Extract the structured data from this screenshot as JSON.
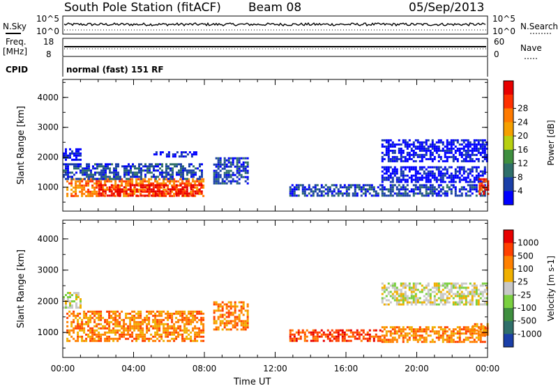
{
  "header": {
    "station": "South Pole Station (fitACF)",
    "beam": "Beam 08",
    "date": "05/Sep/2013"
  },
  "summary_panels": {
    "nsky_label": "N.Sky",
    "nsky_ticks": [
      "10^5",
      "10^0"
    ],
    "nsearch_label": "N.Search",
    "nsearch_ticks": [
      "10^5",
      "10^0"
    ],
    "freq_label_1": "Freq.",
    "freq_label_2": "[MHz]",
    "freq_ticks": [
      "18",
      "8"
    ],
    "nave_label": "Nave",
    "nave_ticks": [
      "60",
      "0"
    ],
    "cpid_label": "CPID",
    "cpid_text": "normal (fast) 151 RF"
  },
  "chart_data": [
    {
      "type": "heatmap",
      "title": "",
      "xlabel": "Time UT",
      "ylabel": "Slant Range [km]",
      "x_ticks": [
        "00:00",
        "04:00",
        "08:00",
        "12:00",
        "16:00",
        "20:00",
        "00:00"
      ],
      "x_range_hours": [
        0,
        24
      ],
      "y_ticks": [
        1000,
        2000,
        3000,
        4000
      ],
      "ylim": [
        200,
        4600
      ],
      "colorbar_label": "Power [dB]",
      "colorbar_ticks": [
        "4",
        "8",
        "12",
        "16",
        "20",
        "24",
        "28"
      ],
      "colors": [
        "#0000ff",
        "#1a3fa8",
        "#2f6f6a",
        "#3f8f3f",
        "#b8d010",
        "#f5a000",
        "#ff7a00",
        "#ff3000",
        "#e80000"
      ],
      "regions": [
        {
          "t0": 0.2,
          "t1": 7.9,
          "r0": 700,
          "r1": 1300,
          "level": 6
        },
        {
          "t0": 2.0,
          "t1": 7.9,
          "r0": 700,
          "r1": 1100,
          "level": 8
        },
        {
          "t0": 0.0,
          "t1": 7.9,
          "r0": 1300,
          "r1": 1800,
          "level": 1
        },
        {
          "t0": 0.0,
          "t1": 1.0,
          "r0": 1900,
          "r1": 2300,
          "level": 0
        },
        {
          "t0": 5.0,
          "t1": 7.5,
          "r0": 2000,
          "r1": 2200,
          "level": 0
        },
        {
          "t0": 8.5,
          "t1": 10.5,
          "r0": 1100,
          "r1": 2000,
          "level": 1
        },
        {
          "t0": 12.8,
          "t1": 23.9,
          "r0": 700,
          "r1": 1100,
          "level": 1
        },
        {
          "t0": 18.0,
          "t1": 23.9,
          "r0": 1200,
          "r1": 1700,
          "level": 0
        },
        {
          "t0": 18.0,
          "t1": 24.0,
          "r0": 1900,
          "r1": 2600,
          "level": 0
        },
        {
          "t0": 23.5,
          "t1": 24.0,
          "r0": 800,
          "r1": 1300,
          "level": 7
        }
      ]
    },
    {
      "type": "heatmap",
      "title": "",
      "xlabel": "Time UT",
      "ylabel": "Slant Range [km]",
      "x_ticks": [
        "00:00",
        "04:00",
        "08:00",
        "12:00",
        "16:00",
        "20:00",
        "00:00"
      ],
      "x_range_hours": [
        0,
        24
      ],
      "y_ticks": [
        1000,
        2000,
        3000,
        4000
      ],
      "ylim": [
        200,
        4600
      ],
      "colorbar_label": "Velocity [m s-1]",
      "colorbar_ticks": [
        "1000",
        "500",
        "100",
        "25",
        "-25",
        "-100",
        "-500",
        "-1000"
      ],
      "colors": [
        "#1a3fa8",
        "#2f6f6a",
        "#3f8f3f",
        "#7ad040",
        "#c8c8c8",
        "#f0b000",
        "#ff8000",
        "#ff4000",
        "#e80000"
      ],
      "regions": [
        {
          "t0": 0.2,
          "t1": 7.9,
          "r0": 700,
          "r1": 1700,
          "level": 6
        },
        {
          "t0": 0.0,
          "t1": 1.0,
          "r0": 1800,
          "r1": 2300,
          "level": 4
        },
        {
          "t0": 8.5,
          "t1": 10.5,
          "r0": 1100,
          "r1": 2000,
          "level": 6
        },
        {
          "t0": 12.8,
          "t1": 18.0,
          "r0": 700,
          "r1": 1100,
          "level": 7
        },
        {
          "t0": 18.0,
          "t1": 23.9,
          "r0": 700,
          "r1": 1200,
          "level": 6
        },
        {
          "t0": 18.0,
          "t1": 24.0,
          "r0": 1900,
          "r1": 2600,
          "level": 4
        },
        {
          "t0": 23.0,
          "t1": 24.0,
          "r0": 900,
          "r1": 1300,
          "level": 6
        }
      ]
    }
  ]
}
